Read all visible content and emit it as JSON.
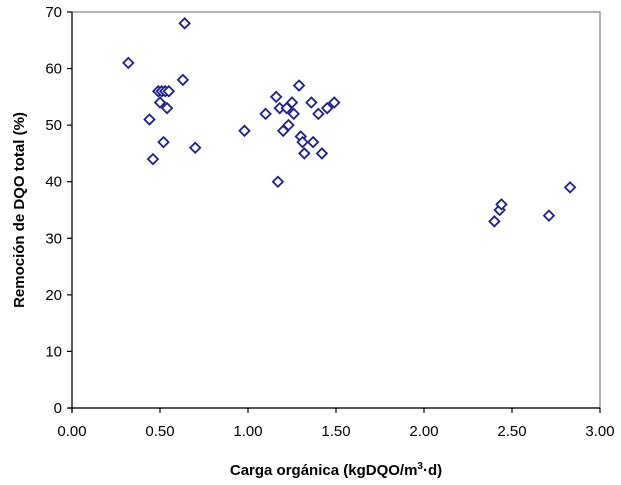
{
  "chart_data": {
    "type": "scatter",
    "xlabel": {
      "prefix": "Carga orgánica (kgDQO/m",
      "sup": "3",
      "suffix": "·d)"
    },
    "ylabel": "Remoción de DQO total (%)",
    "xlim": [
      0,
      3
    ],
    "ylim": [
      0,
      70
    ],
    "xticks": [
      "0.00",
      "0.50",
      "1.00",
      "1.50",
      "2.00",
      "2.50",
      "3.00"
    ],
    "yticks": [
      "0",
      "10",
      "20",
      "30",
      "40",
      "50",
      "60",
      "70"
    ],
    "grid": false,
    "legend": "none",
    "marker": "diamond-open",
    "marker_color": "#1f1f8c",
    "series": [
      {
        "points": [
          [
            0.32,
            61
          ],
          [
            0.64,
            68
          ],
          [
            0.63,
            58
          ],
          [
            0.49,
            56
          ],
          [
            0.51,
            56
          ],
          [
            0.53,
            56
          ],
          [
            0.55,
            56
          ],
          [
            0.5,
            54
          ],
          [
            0.54,
            53
          ],
          [
            0.44,
            51
          ],
          [
            0.52,
            47
          ],
          [
            0.46,
            44
          ],
          [
            0.7,
            46
          ],
          [
            0.98,
            49
          ],
          [
            1.1,
            52
          ],
          [
            1.16,
            55
          ],
          [
            1.18,
            53
          ],
          [
            1.22,
            53
          ],
          [
            1.25,
            54
          ],
          [
            1.26,
            52
          ],
          [
            1.2,
            49
          ],
          [
            1.23,
            50
          ],
          [
            1.29,
            57
          ],
          [
            1.3,
            48
          ],
          [
            1.31,
            47
          ],
          [
            1.32,
            45
          ],
          [
            1.36,
            54
          ],
          [
            1.37,
            47
          ],
          [
            1.4,
            52
          ],
          [
            1.42,
            45
          ],
          [
            1.45,
            53
          ],
          [
            1.49,
            54
          ],
          [
            1.17,
            40
          ],
          [
            2.4,
            33
          ],
          [
            2.43,
            35
          ],
          [
            2.44,
            36
          ],
          [
            2.71,
            34
          ],
          [
            2.83,
            39
          ]
        ]
      }
    ]
  }
}
